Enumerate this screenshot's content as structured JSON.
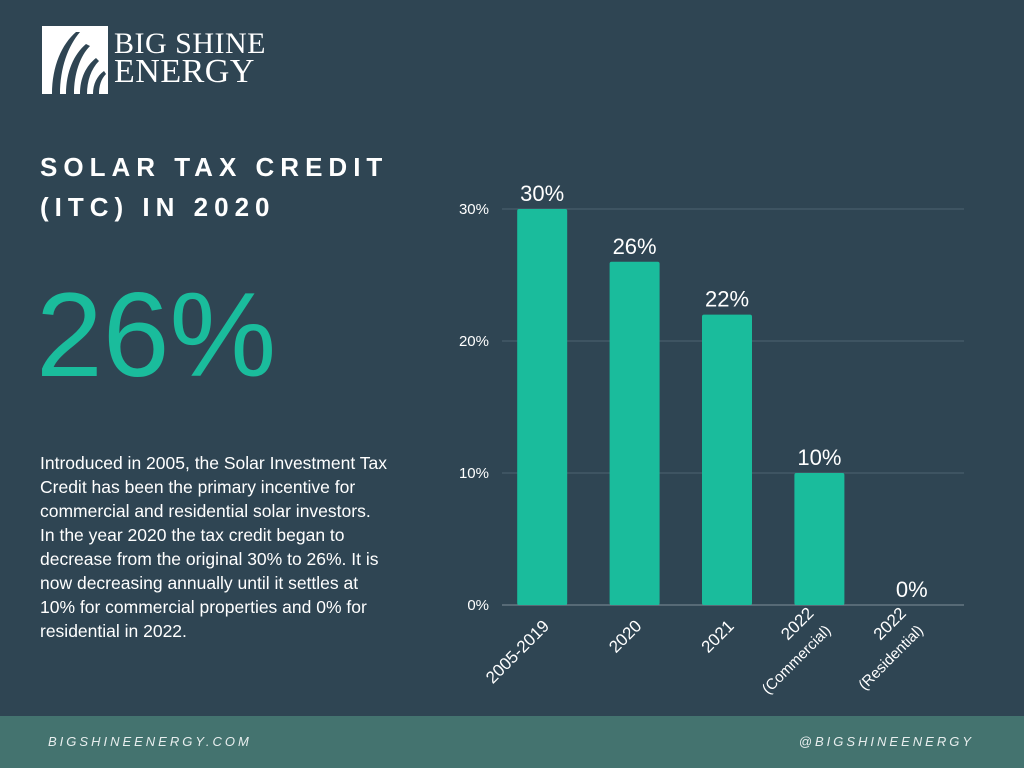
{
  "brand": {
    "line1": "BIG SHINE",
    "line2": "ENERGY"
  },
  "headline": {
    "line1": "SOLAR TAX CREDIT",
    "line2": "(ITC) IN 2020"
  },
  "big_value": "26%",
  "description": "Introduced in 2005, the Solar Investment Tax Credit has been the primary incentive for commercial and residential solar investors. In the year 2020 the tax credit began to decrease from the original 30% to 26%. It is now decreasing annually until it settles at 10% for commercial properties and 0% for residential in 2022.",
  "footer": {
    "website": "BIGSHINEENERGY.COM",
    "handle": "@BIGSHINEENERGY"
  },
  "colors": {
    "background": "#2f4553",
    "accent": "#1abc9c",
    "footer": "#44736f"
  },
  "chart_data": {
    "type": "bar",
    "categories": [
      [
        "2005-2019"
      ],
      [
        "2020"
      ],
      [
        "2021"
      ],
      [
        "2022",
        "(Commercial)"
      ],
      [
        "2022",
        "(Residential)"
      ]
    ],
    "values": [
      30,
      26,
      22,
      10,
      0
    ],
    "data_labels": [
      "30%",
      "26%",
      "22%",
      "10%",
      "0%"
    ],
    "yticks": [
      0,
      10,
      20,
      30
    ],
    "ytick_labels": [
      "0%",
      "10%",
      "20%",
      "30%"
    ],
    "ylim": [
      0,
      30
    ],
    "grid": true,
    "bar_color": "#1abc9c"
  }
}
